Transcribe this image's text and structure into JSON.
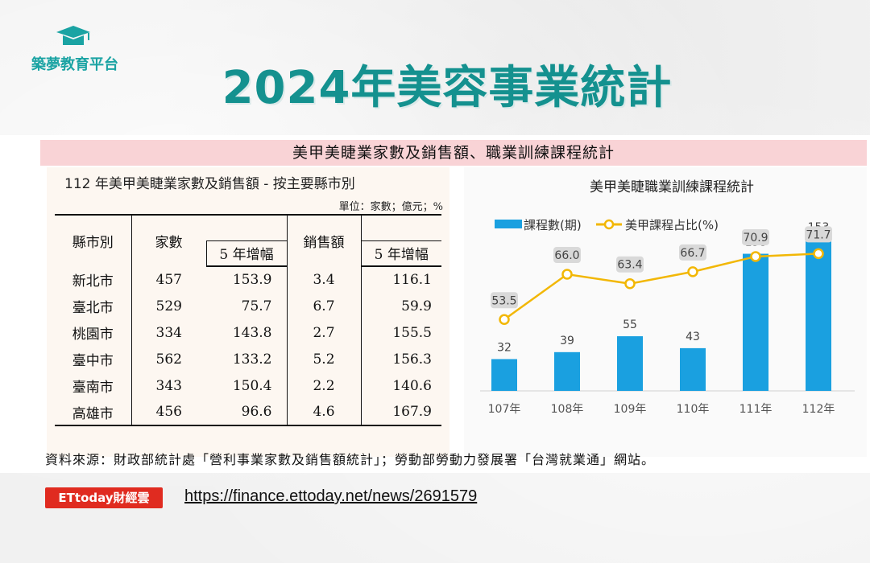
{
  "brand": {
    "name": "築夢教育平台",
    "accent_color": "#1aa3a3"
  },
  "title": "2024年美容事業統計",
  "banner": "美甲美睫業家數及銷售額、職業訓練課程統計",
  "table": {
    "title": "112 年美甲美睫業家數及銷售額 - 按主要縣市別",
    "unit": "單位：家數；億元；%",
    "headers": [
      "縣市別",
      "家數",
      "5 年增幅",
      "銷售額",
      "5 年增幅"
    ],
    "rows": [
      [
        "新北市",
        "457",
        "153.9",
        "3.4",
        "116.1"
      ],
      [
        "臺北市",
        "529",
        "75.7",
        "6.7",
        "59.9"
      ],
      [
        "桃園市",
        "334",
        "143.8",
        "2.7",
        "155.5"
      ],
      [
        "臺中市",
        "562",
        "133.2",
        "5.2",
        "156.3"
      ],
      [
        "臺南市",
        "343",
        "150.4",
        "2.2",
        "140.6"
      ],
      [
        "高雄市",
        "456",
        "96.6",
        "4.6",
        "167.9"
      ]
    ]
  },
  "chart_data": {
    "type": "bar",
    "title": "美甲美睫職業訓練課程統計",
    "categories": [
      "107年",
      "108年",
      "109年",
      "110年",
      "111年",
      "112年"
    ],
    "series": [
      {
        "name": "課程數(期)",
        "type": "bar",
        "values": [
          32,
          39,
          55,
          43,
          138,
          153
        ],
        "color": "#1aa0e0"
      },
      {
        "name": "美甲課程占比(%)",
        "type": "line",
        "values": [
          53.5,
          66.0,
          63.4,
          66.7,
          70.9,
          71.7
        ],
        "color": "#f2b705"
      }
    ],
    "legend_position": "top-left",
    "grid": false
  },
  "source": "資料來源：財政部統計處「營利事業家數及銷售額統計」；勞動部勞動力發展署「台灣就業通」網站。",
  "footer": {
    "logo_text": "ETtoday財經雲",
    "link": "https://finance.ettoday.net/news/2691579"
  }
}
